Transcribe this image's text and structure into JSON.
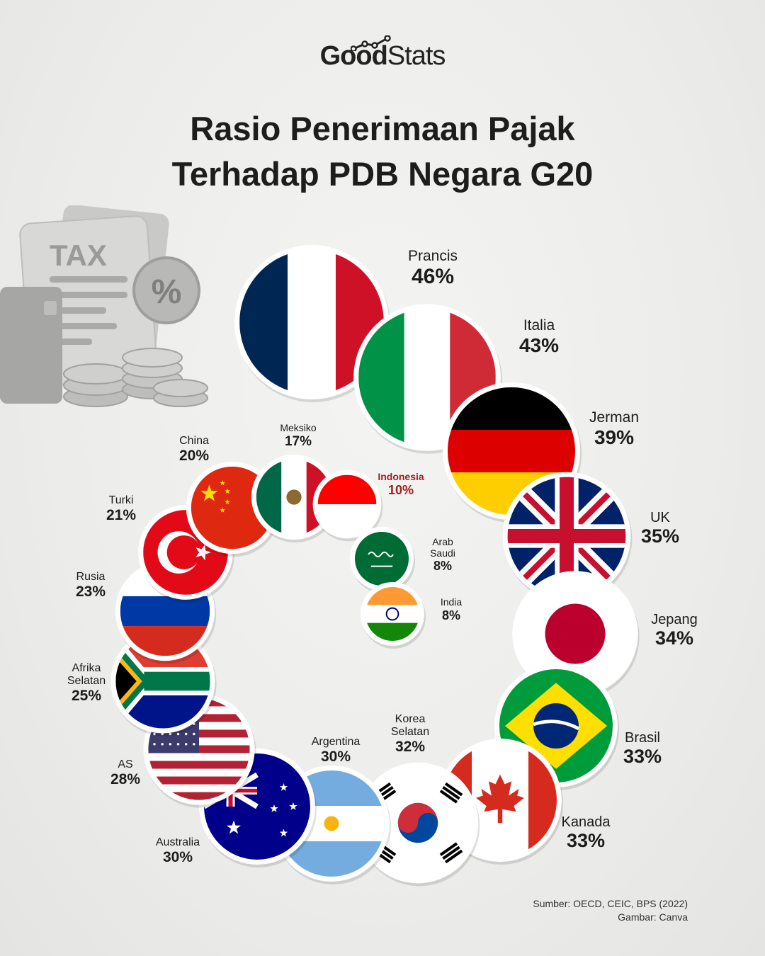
{
  "brand": {
    "logo_part1": "Good",
    "logo_part2": "Stats"
  },
  "title_lines": [
    "Rasio Penerimaan Pajak",
    "Terhadap PDB Negara G20"
  ],
  "decoration": {
    "tax_text": "TAX",
    "percent_symbol": "%"
  },
  "colors": {
    "text": "#1c1c1c",
    "highlight": "#a31d21"
  },
  "chart_data": {
    "type": "bubble",
    "title": "Rasio Penerimaan Pajak Terhadap PDB Negara G20",
    "unit": "%",
    "points": [
      {
        "name": "Prancis",
        "value": 46,
        "label": "46%",
        "flag": "france-flag"
      },
      {
        "name": "Italia",
        "value": 43,
        "label": "43%",
        "flag": "italy-flag"
      },
      {
        "name": "Jerman",
        "value": 39,
        "label": "39%",
        "flag": "germany-flag"
      },
      {
        "name": "UK",
        "value": 35,
        "label": "35%",
        "flag": "uk-flag"
      },
      {
        "name": "Jepang",
        "value": 34,
        "label": "34%",
        "flag": "japan-flag"
      },
      {
        "name": "Brasil",
        "value": 33,
        "label": "33%",
        "flag": "brazil-flag"
      },
      {
        "name": "Kanada",
        "value": 33,
        "label": "33%",
        "flag": "canada-flag"
      },
      {
        "name": "Korea\nSelatan",
        "value": 32,
        "label": "32%",
        "flag": "south-korea-flag"
      },
      {
        "name": "Argentina",
        "value": 30,
        "label": "30%",
        "flag": "argentina-flag"
      },
      {
        "name": "Australia",
        "value": 30,
        "label": "30%",
        "flag": "australia-flag"
      },
      {
        "name": "AS",
        "value": 28,
        "label": "28%",
        "flag": "usa-flag"
      },
      {
        "name": "Afrika\nSelatan",
        "value": 25,
        "label": "25%",
        "flag": "south-africa-flag"
      },
      {
        "name": "Rusia",
        "value": 23,
        "label": "23%",
        "flag": "russia-flag"
      },
      {
        "name": "Turki",
        "value": 21,
        "label": "21%",
        "flag": "turkey-flag"
      },
      {
        "name": "China",
        "value": 20,
        "label": "20%",
        "flag": "china-flag"
      },
      {
        "name": "Meksiko",
        "value": 17,
        "label": "17%",
        "flag": "mexico-flag"
      },
      {
        "name": "Indonesia",
        "value": 10,
        "label": "10%",
        "flag": "indonesia-flag",
        "highlight": true
      },
      {
        "name": "Arab\nSaudi",
        "value": 8,
        "label": "8%",
        "flag": "saudi-arabia-flag"
      },
      {
        "name": "India",
        "value": 8,
        "label": "8%",
        "flag": "india-flag"
      }
    ]
  },
  "source_lines": [
    "Sumber: OECD, CEIC, BPS (2022)",
    "Gambar: Canva"
  ]
}
